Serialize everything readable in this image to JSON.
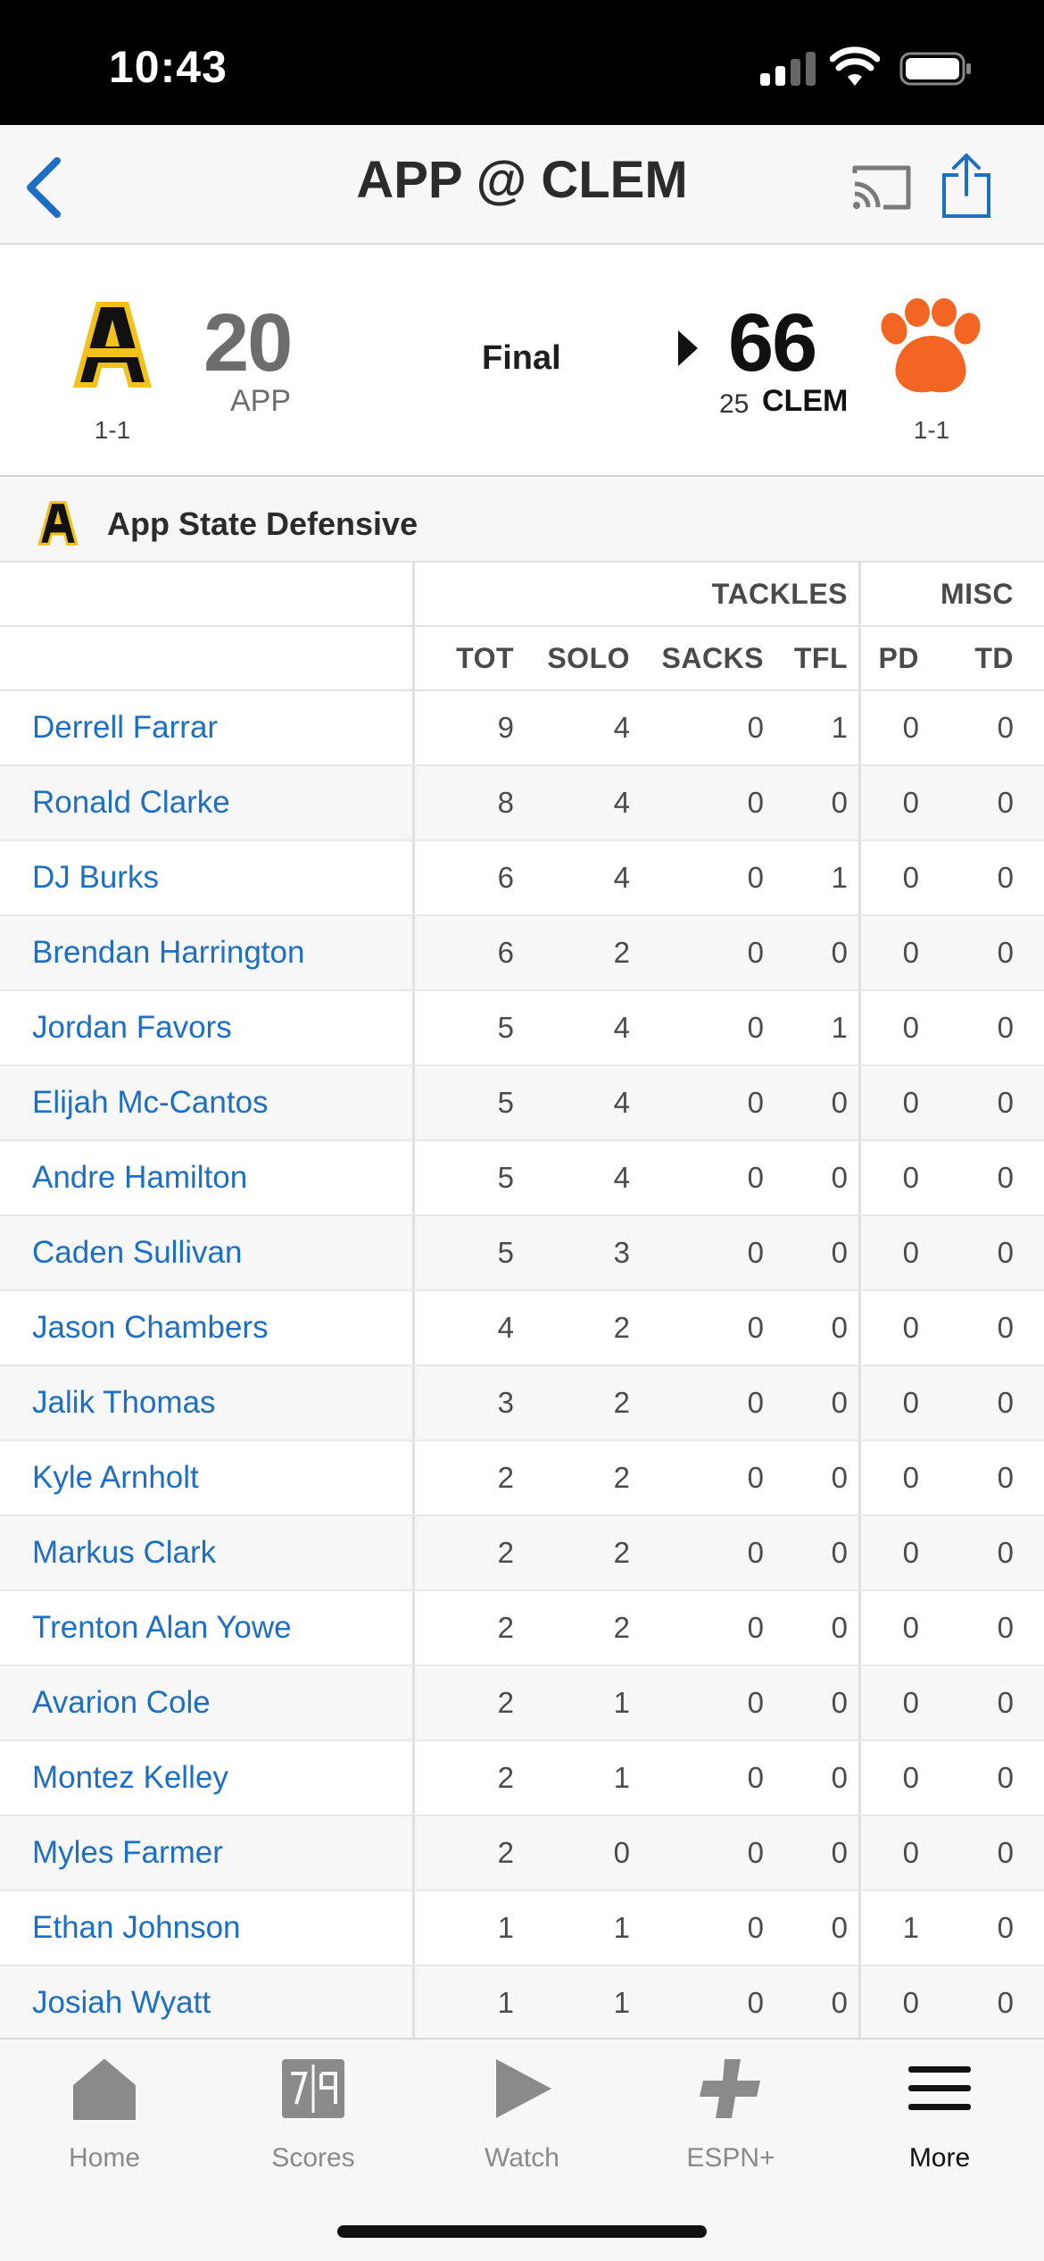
{
  "status_bar": {
    "time": "10:43"
  },
  "header": {
    "title": "APP @ CLEM"
  },
  "game": {
    "away": {
      "score": "20",
      "abbr": "APP",
      "record": "1-1"
    },
    "status": "Final",
    "home": {
      "score": "66",
      "rank": "25",
      "abbr": "CLEM",
      "record": "1-1"
    }
  },
  "section": {
    "title": "App State Defensive"
  },
  "table": {
    "groups": {
      "tackles": "TACKLES",
      "misc": "MISC"
    },
    "columns": [
      "TOT",
      "SOLO",
      "SACKS",
      "TFL",
      "PD",
      "TD"
    ],
    "rows": [
      {
        "name": "Derrell Farrar",
        "stats": [
          "9",
          "4",
          "0",
          "1",
          "0",
          "0"
        ]
      },
      {
        "name": "Ronald Clarke",
        "stats": [
          "8",
          "4",
          "0",
          "0",
          "0",
          "0"
        ]
      },
      {
        "name": "DJ Burks",
        "stats": [
          "6",
          "4",
          "0",
          "1",
          "0",
          "0"
        ]
      },
      {
        "name": "Brendan Harrington",
        "stats": [
          "6",
          "2",
          "0",
          "0",
          "0",
          "0"
        ]
      },
      {
        "name": "Jordan Favors",
        "stats": [
          "5",
          "4",
          "0",
          "1",
          "0",
          "0"
        ]
      },
      {
        "name": "Elijah Mc-Cantos",
        "stats": [
          "5",
          "4",
          "0",
          "0",
          "0",
          "0"
        ]
      },
      {
        "name": "Andre Hamilton",
        "stats": [
          "5",
          "4",
          "0",
          "0",
          "0",
          "0"
        ]
      },
      {
        "name": "Caden Sullivan",
        "stats": [
          "5",
          "3",
          "0",
          "0",
          "0",
          "0"
        ]
      },
      {
        "name": "Jason Chambers",
        "stats": [
          "4",
          "2",
          "0",
          "0",
          "0",
          "0"
        ]
      },
      {
        "name": "Jalik Thomas",
        "stats": [
          "3",
          "2",
          "0",
          "0",
          "0",
          "0"
        ]
      },
      {
        "name": "Kyle Arnholt",
        "stats": [
          "2",
          "2",
          "0",
          "0",
          "0",
          "0"
        ]
      },
      {
        "name": "Markus Clark",
        "stats": [
          "2",
          "2",
          "0",
          "0",
          "0",
          "0"
        ]
      },
      {
        "name": "Trenton Alan Yowe",
        "stats": [
          "2",
          "2",
          "0",
          "0",
          "0",
          "0"
        ]
      },
      {
        "name": "Avarion Cole",
        "stats": [
          "2",
          "1",
          "0",
          "0",
          "0",
          "0"
        ]
      },
      {
        "name": "Montez Kelley",
        "stats": [
          "2",
          "1",
          "0",
          "0",
          "0",
          "0"
        ]
      },
      {
        "name": "Myles Farmer",
        "stats": [
          "2",
          "0",
          "0",
          "0",
          "0",
          "0"
        ]
      },
      {
        "name": "Ethan Johnson",
        "stats": [
          "1",
          "1",
          "0",
          "0",
          "1",
          "0"
        ]
      },
      {
        "name": "Josiah Wyatt",
        "stats": [
          "1",
          "1",
          "0",
          "0",
          "0",
          "0"
        ]
      }
    ]
  },
  "tabs": [
    {
      "label": "Home",
      "icon": "house-icon"
    },
    {
      "label": "Scores",
      "icon": "scoreboard-icon"
    },
    {
      "label": "Watch",
      "icon": "play-icon"
    },
    {
      "label": "ESPN+",
      "icon": "plus-icon"
    },
    {
      "label": "More",
      "icon": "menu-icon",
      "active": true
    }
  ],
  "colors": {
    "link": "#1d6fc4",
    "app_gold": "#f2c21b",
    "clemson_orange": "#f26522"
  }
}
